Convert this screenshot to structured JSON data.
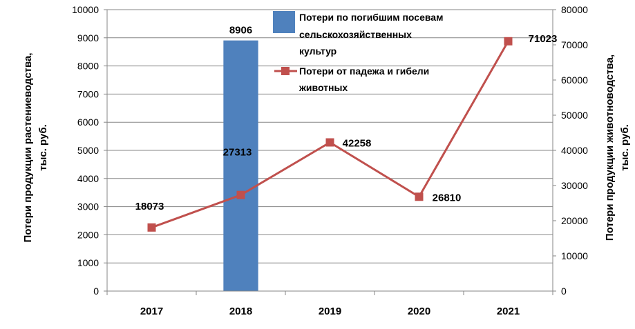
{
  "chart_data": {
    "type": "bar+line",
    "categories": [
      "2017",
      "2018",
      "2019",
      "2020",
      "2021"
    ],
    "series": [
      {
        "name": "Потери по погибшим посевам сельскохозяйственных культур",
        "type": "bar",
        "axis": "left",
        "color": "#4F81BD",
        "values": [
          null,
          8906,
          null,
          null,
          null
        ],
        "labels": [
          "",
          "8906",
          "",
          "",
          ""
        ]
      },
      {
        "name": "Потери от падежа и гибели животных",
        "type": "line",
        "axis": "right",
        "color": "#C0504D",
        "marker": "square",
        "values": [
          18073,
          27313,
          42258,
          26810,
          71023
        ],
        "labels": [
          "18073",
          "27313",
          "42258",
          "26810",
          "71023"
        ]
      }
    ],
    "y_left": {
      "label_lines": [
        "Потери продукции растениеводства,",
        "тыс. руб."
      ],
      "ylim": [
        0,
        10000
      ],
      "ticks": [
        0,
        1000,
        2000,
        3000,
        4000,
        5000,
        6000,
        7000,
        8000,
        9000,
        10000
      ],
      "tick_labels": [
        "0",
        "1000",
        "2000",
        "3000",
        "4000",
        "5000",
        "6000",
        "7000",
        "8000",
        "9000",
        "10000"
      ]
    },
    "y_right": {
      "label_lines": [
        "Потери продукции животноводства,",
        "тыс. руб."
      ],
      "ylim": [
        0,
        80000
      ],
      "ticks": [
        0,
        10000,
        20000,
        30000,
        40000,
        50000,
        60000,
        70000,
        80000
      ],
      "tick_labels": [
        "0",
        "10000",
        "20000",
        "30000",
        "40000",
        "50000",
        "60000",
        "70000",
        "80000"
      ]
    },
    "grid": true,
    "legend": "top-center"
  }
}
